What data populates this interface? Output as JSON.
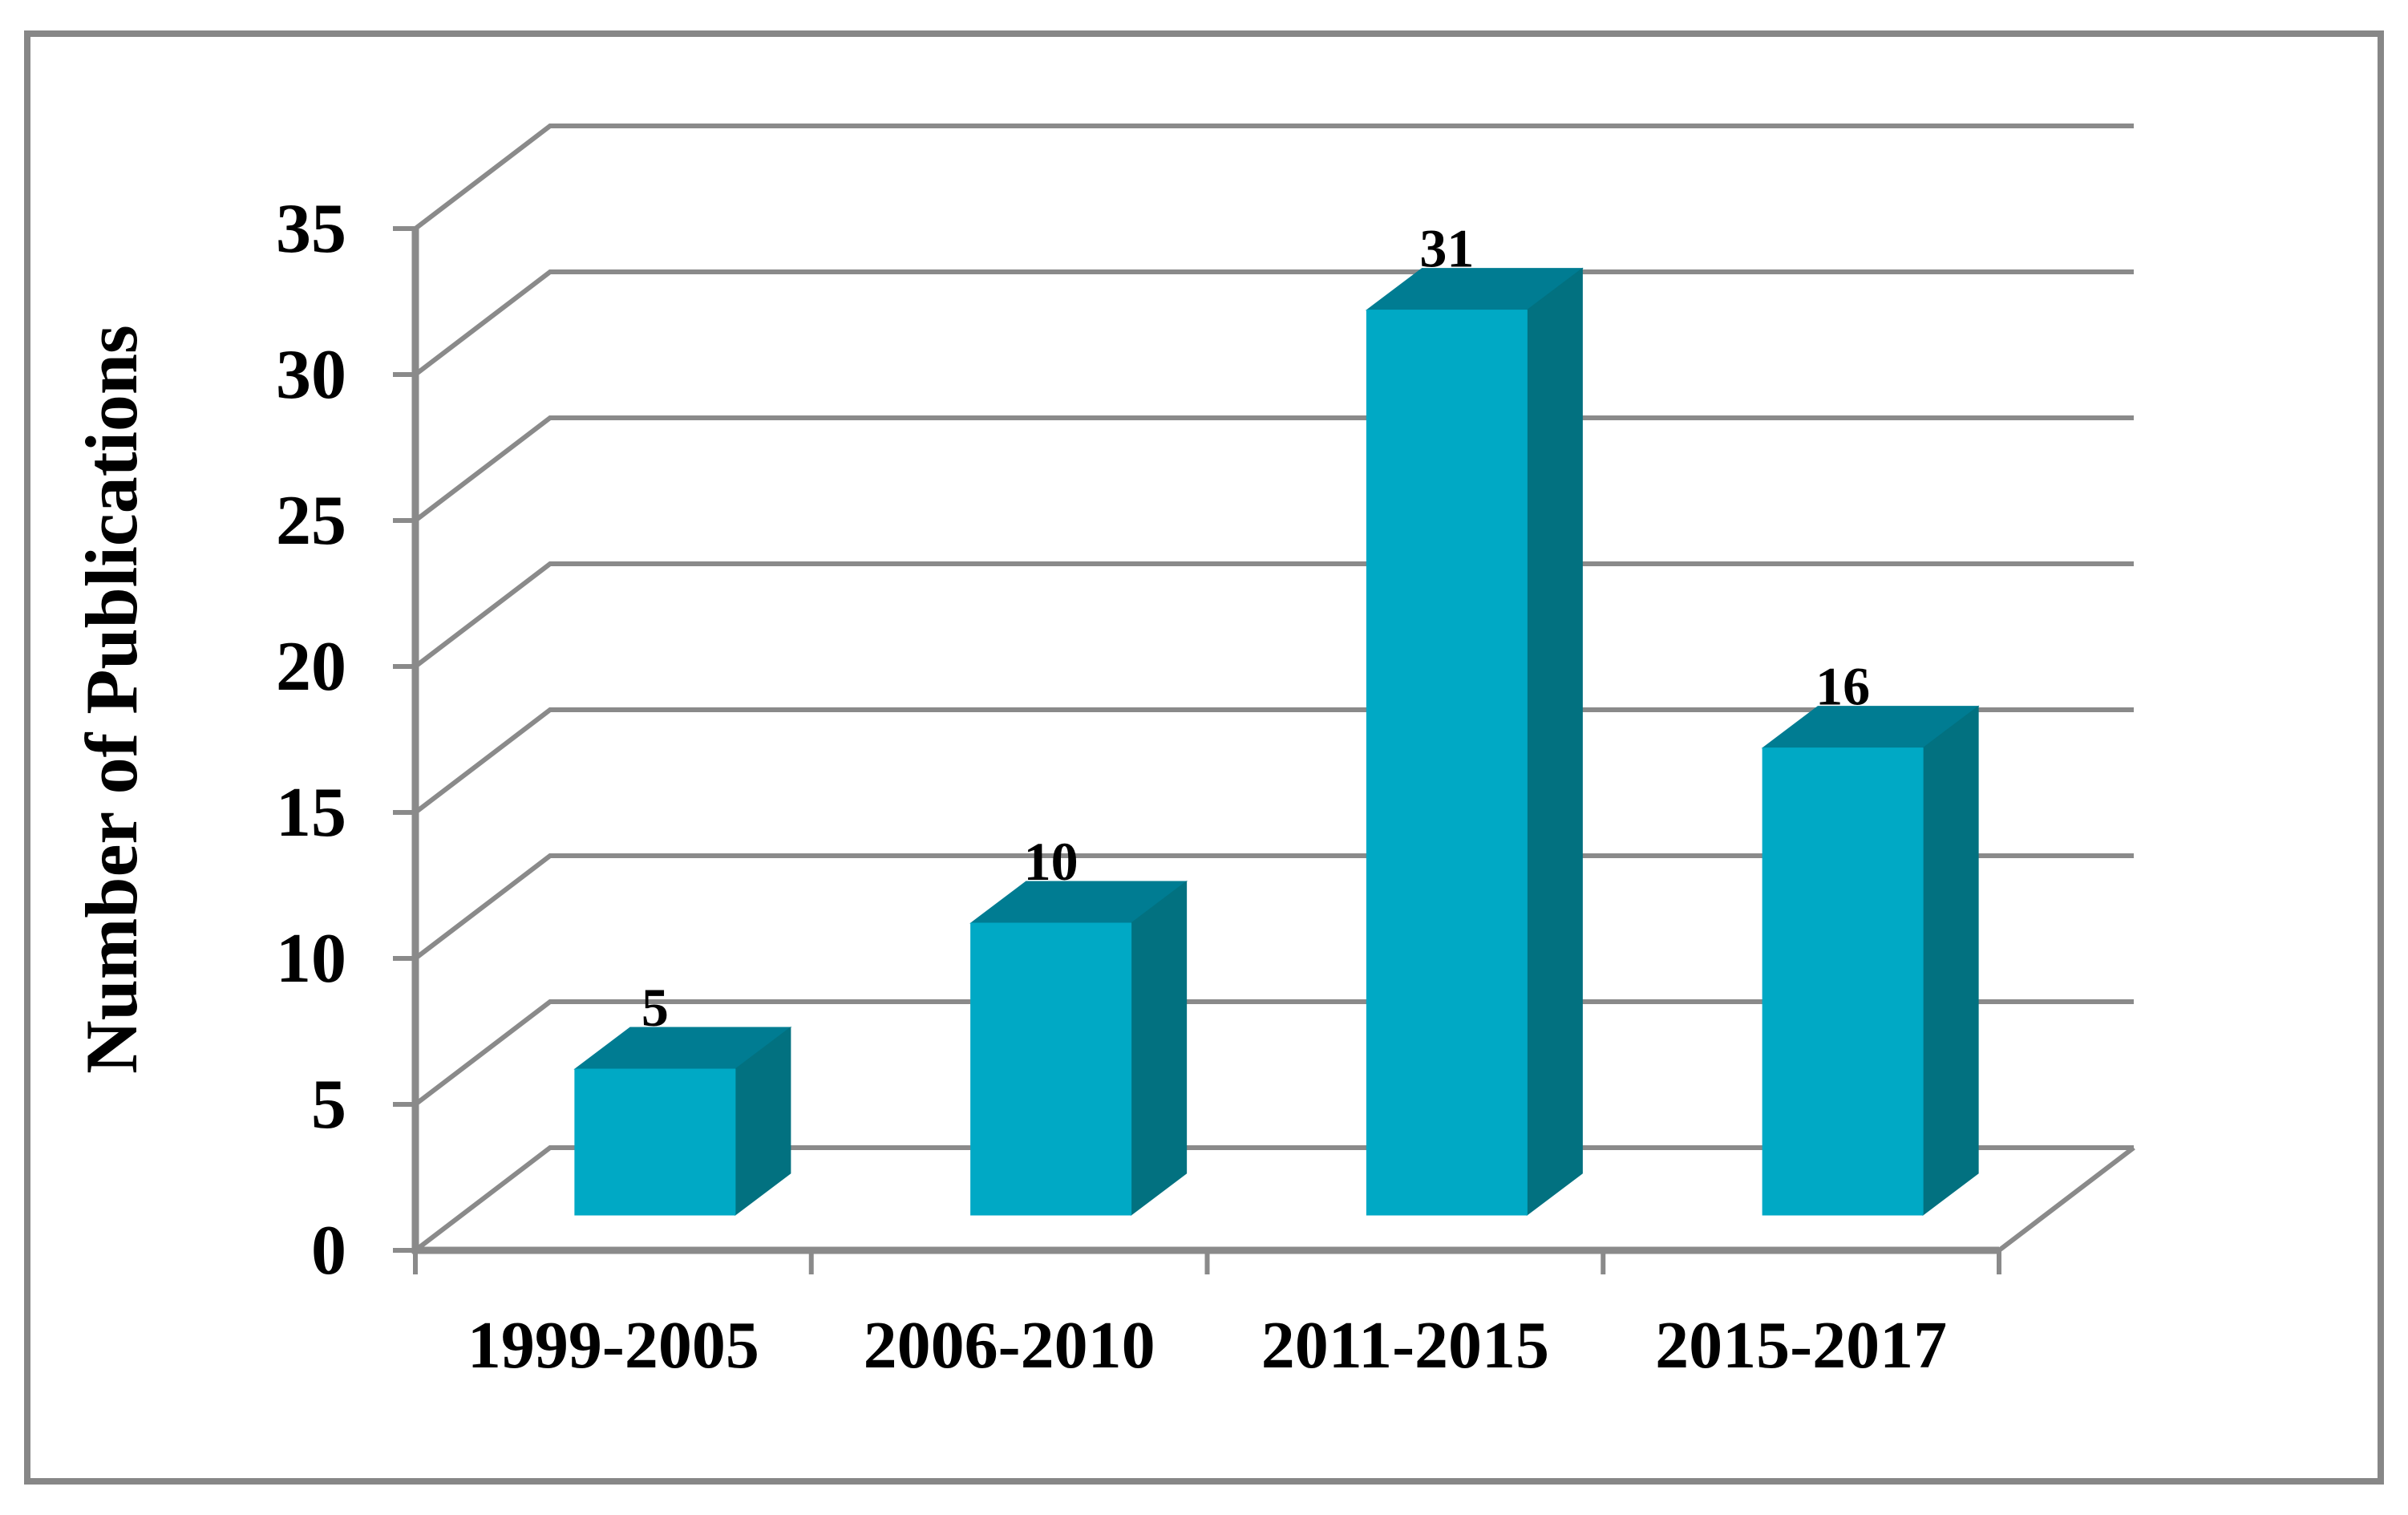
{
  "figure": {
    "border_color": "#878787",
    "background_color": "#ffffff"
  },
  "chart_data": {
    "type": "bar",
    "style": "3d-column",
    "title": "",
    "xlabel": "",
    "ylabel": "Number of Publications",
    "categories": [
      "1999-2005",
      "2006-2010",
      "2011-2015",
      "2015-2017"
    ],
    "values": [
      5,
      10,
      31,
      16
    ],
    "data_labels": [
      "5",
      "10",
      "31",
      "16"
    ],
    "yticks": [
      0,
      5,
      10,
      15,
      20,
      25,
      30,
      35
    ],
    "ylim": [
      0,
      35
    ],
    "grid": true,
    "legend": "none",
    "colors": {
      "bar_front": "#00A9C5",
      "bar_top": "#007C92",
      "bar_side": "#027180",
      "axis_line": "#8A8A8A",
      "gridline": "#8A8A8A",
      "text": "#000000"
    }
  }
}
